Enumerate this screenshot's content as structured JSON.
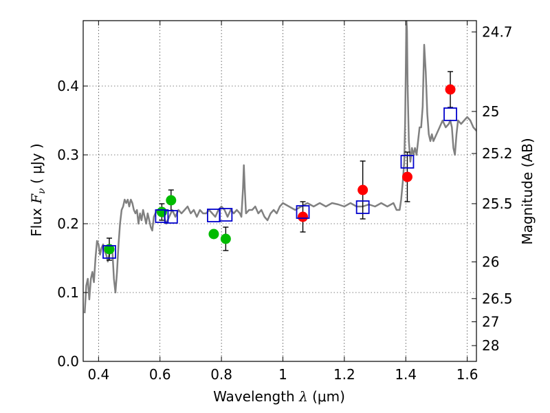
{
  "chart_data": {
    "type": "scatter",
    "xlabel": {
      "prefix": "Wavelength  ",
      "symbol": "λ",
      "units": " (μm)"
    },
    "ylabel": {
      "prefix": "Flux  ",
      "symbol": "F",
      "subscript": "ν",
      "units": "  ( μJy )"
    },
    "y2label": "Magnitude (AB)",
    "xlim": [
      0.35,
      1.63
    ],
    "ylim": [
      0.0,
      0.495
    ],
    "grid": true,
    "x_ticks": [
      {
        "value": 0.4,
        "label": "0.4"
      },
      {
        "value": 0.6,
        "label": "0.6"
      },
      {
        "value": 0.8,
        "label": "0.8"
      },
      {
        "value": 1.0,
        "label": "1"
      },
      {
        "value": 1.2,
        "label": "1.2"
      },
      {
        "value": 1.4,
        "label": "1.4"
      },
      {
        "value": 1.6,
        "label": "1.6"
      }
    ],
    "y_ticks": [
      {
        "value": 0.0,
        "label": "0.0"
      },
      {
        "value": 0.1,
        "label": "0.1"
      },
      {
        "value": 0.2,
        "label": "0.2"
      },
      {
        "value": 0.3,
        "label": "0.3"
      },
      {
        "value": 0.4,
        "label": "0.4"
      }
    ],
    "y2_ticks": [
      {
        "value": 24.7,
        "label": "24.7"
      },
      {
        "value": 25.0,
        "label": "25"
      },
      {
        "value": 25.2,
        "label": "25.2"
      },
      {
        "value": 25.5,
        "label": "25.5"
      },
      {
        "value": 26.0,
        "label": "26"
      },
      {
        "value": 26.5,
        "label": "26.5"
      },
      {
        "value": 27.0,
        "label": "27"
      },
      {
        "value": 28.0,
        "label": "28"
      }
    ],
    "series": [
      {
        "type": "line",
        "color": "#808080",
        "points": [
          [
            0.355,
            0.07
          ],
          [
            0.36,
            0.11
          ],
          [
            0.365,
            0.12
          ],
          [
            0.37,
            0.09
          ],
          [
            0.375,
            0.12
          ],
          [
            0.38,
            0.13
          ],
          [
            0.385,
            0.115
          ],
          [
            0.39,
            0.15
          ],
          [
            0.395,
            0.175
          ],
          [
            0.4,
            0.17
          ],
          [
            0.405,
            0.155
          ],
          [
            0.41,
            0.165
          ],
          [
            0.415,
            0.17
          ],
          [
            0.42,
            0.16
          ],
          [
            0.425,
            0.155
          ],
          [
            0.43,
            0.145
          ],
          [
            0.435,
            0.155
          ],
          [
            0.44,
            0.165
          ],
          [
            0.445,
            0.16
          ],
          [
            0.45,
            0.12
          ],
          [
            0.455,
            0.1
          ],
          [
            0.46,
            0.13
          ],
          [
            0.465,
            0.17
          ],
          [
            0.47,
            0.2
          ],
          [
            0.475,
            0.22
          ],
          [
            0.48,
            0.225
          ],
          [
            0.485,
            0.235
          ],
          [
            0.49,
            0.23
          ],
          [
            0.495,
            0.235
          ],
          [
            0.5,
            0.225
          ],
          [
            0.505,
            0.235
          ],
          [
            0.51,
            0.23
          ],
          [
            0.515,
            0.22
          ],
          [
            0.52,
            0.215
          ],
          [
            0.525,
            0.22
          ],
          [
            0.53,
            0.2
          ],
          [
            0.535,
            0.215
          ],
          [
            0.54,
            0.205
          ],
          [
            0.545,
            0.22
          ],
          [
            0.55,
            0.21
          ],
          [
            0.555,
            0.2
          ],
          [
            0.56,
            0.215
          ],
          [
            0.565,
            0.205
          ],
          [
            0.57,
            0.195
          ],
          [
            0.575,
            0.19
          ],
          [
            0.58,
            0.21
          ],
          [
            0.585,
            0.215
          ],
          [
            0.59,
            0.22
          ],
          [
            0.6,
            0.22
          ],
          [
            0.61,
            0.215
          ],
          [
            0.62,
            0.2
          ],
          [
            0.63,
            0.21
          ],
          [
            0.64,
            0.22
          ],
          [
            0.65,
            0.21
          ],
          [
            0.66,
            0.22
          ],
          [
            0.67,
            0.215
          ],
          [
            0.68,
            0.22
          ],
          [
            0.69,
            0.225
          ],
          [
            0.7,
            0.215
          ],
          [
            0.71,
            0.22
          ],
          [
            0.72,
            0.21
          ],
          [
            0.73,
            0.22
          ],
          [
            0.74,
            0.215
          ],
          [
            0.75,
            0.215
          ],
          [
            0.76,
            0.22
          ],
          [
            0.77,
            0.215
          ],
          [
            0.78,
            0.21
          ],
          [
            0.79,
            0.22
          ],
          [
            0.8,
            0.225
          ],
          [
            0.81,
            0.22
          ],
          [
            0.82,
            0.21
          ],
          [
            0.83,
            0.22
          ],
          [
            0.84,
            0.215
          ],
          [
            0.85,
            0.22
          ],
          [
            0.86,
            0.215
          ],
          [
            0.865,
            0.21
          ],
          [
            0.87,
            0.25
          ],
          [
            0.873,
            0.285
          ],
          [
            0.876,
            0.25
          ],
          [
            0.88,
            0.215
          ],
          [
            0.89,
            0.22
          ],
          [
            0.9,
            0.22
          ],
          [
            0.91,
            0.225
          ],
          [
            0.92,
            0.215
          ],
          [
            0.93,
            0.22
          ],
          [
            0.94,
            0.21
          ],
          [
            0.95,
            0.205
          ],
          [
            0.96,
            0.215
          ],
          [
            0.97,
            0.22
          ],
          [
            0.98,
            0.215
          ],
          [
            0.99,
            0.225
          ],
          [
            1.0,
            0.23
          ],
          [
            1.02,
            0.225
          ],
          [
            1.04,
            0.22
          ],
          [
            1.06,
            0.225
          ],
          [
            1.08,
            0.23
          ],
          [
            1.1,
            0.225
          ],
          [
            1.12,
            0.23
          ],
          [
            1.14,
            0.225
          ],
          [
            1.16,
            0.23
          ],
          [
            1.18,
            0.228
          ],
          [
            1.2,
            0.225
          ],
          [
            1.22,
            0.23
          ],
          [
            1.24,
            0.225
          ],
          [
            1.26,
            0.225
          ],
          [
            1.28,
            0.228
          ],
          [
            1.3,
            0.225
          ],
          [
            1.32,
            0.23
          ],
          [
            1.34,
            0.225
          ],
          [
            1.36,
            0.23
          ],
          [
            1.37,
            0.22
          ],
          [
            1.38,
            0.22
          ],
          [
            1.385,
            0.235
          ],
          [
            1.39,
            0.26
          ],
          [
            1.395,
            0.29
          ],
          [
            1.398,
            0.35
          ],
          [
            1.4,
            0.42
          ],
          [
            1.402,
            0.5
          ],
          [
            1.404,
            0.48
          ],
          [
            1.406,
            0.4
          ],
          [
            1.41,
            0.32
          ],
          [
            1.415,
            0.29
          ],
          [
            1.42,
            0.31
          ],
          [
            1.425,
            0.3
          ],
          [
            1.43,
            0.31
          ],
          [
            1.435,
            0.3
          ],
          [
            1.44,
            0.32
          ],
          [
            1.445,
            0.34
          ],
          [
            1.45,
            0.34
          ],
          [
            1.455,
            0.37
          ],
          [
            1.46,
            0.46
          ],
          [
            1.465,
            0.42
          ],
          [
            1.47,
            0.36
          ],
          [
            1.475,
            0.33
          ],
          [
            1.48,
            0.32
          ],
          [
            1.485,
            0.33
          ],
          [
            1.49,
            0.32
          ],
          [
            1.5,
            0.33
          ],
          [
            1.51,
            0.34
          ],
          [
            1.52,
            0.35
          ],
          [
            1.53,
            0.34
          ],
          [
            1.54,
            0.345
          ],
          [
            1.545,
            0.35
          ],
          [
            1.55,
            0.34
          ],
          [
            1.555,
            0.31
          ],
          [
            1.56,
            0.3
          ],
          [
            1.565,
            0.33
          ],
          [
            1.57,
            0.35
          ],
          [
            1.58,
            0.345
          ],
          [
            1.59,
            0.35
          ],
          [
            1.6,
            0.355
          ],
          [
            1.61,
            0.35
          ],
          [
            1.62,
            0.34
          ],
          [
            1.63,
            0.335
          ]
        ]
      },
      {
        "type": "scatter",
        "marker": "circle",
        "color": "#00bb00",
        "points": [
          {
            "x": 0.435,
            "y": 0.163,
            "err": 0.016
          },
          {
            "x": 0.606,
            "y": 0.217,
            "err": 0.012
          },
          {
            "x": 0.636,
            "y": 0.234,
            "err": 0.015
          },
          {
            "x": 0.775,
            "y": 0.185,
            "err": 0.0
          },
          {
            "x": 0.814,
            "y": 0.178,
            "err": 0.017
          }
        ]
      },
      {
        "type": "scatter",
        "marker": "circle",
        "color": "#ff0000",
        "points": [
          {
            "x": 1.065,
            "y": 0.21,
            "err": 0.022
          },
          {
            "x": 1.26,
            "y": 0.249,
            "err": 0.042
          },
          {
            "x": 1.405,
            "y": 0.268,
            "err": 0.036
          },
          {
            "x": 1.545,
            "y": 0.395,
            "err": 0.026
          }
        ]
      },
      {
        "type": "scatter",
        "marker": "open-square",
        "color": "#0000cc",
        "points": [
          {
            "x": 0.435,
            "y": 0.159
          },
          {
            "x": 0.606,
            "y": 0.211
          },
          {
            "x": 0.636,
            "y": 0.21
          },
          {
            "x": 0.775,
            "y": 0.212
          },
          {
            "x": 0.814,
            "y": 0.213
          },
          {
            "x": 1.065,
            "y": 0.217
          },
          {
            "x": 1.26,
            "y": 0.224
          },
          {
            "x": 1.405,
            "y": 0.29
          },
          {
            "x": 1.545,
            "y": 0.359
          }
        ]
      }
    ]
  }
}
